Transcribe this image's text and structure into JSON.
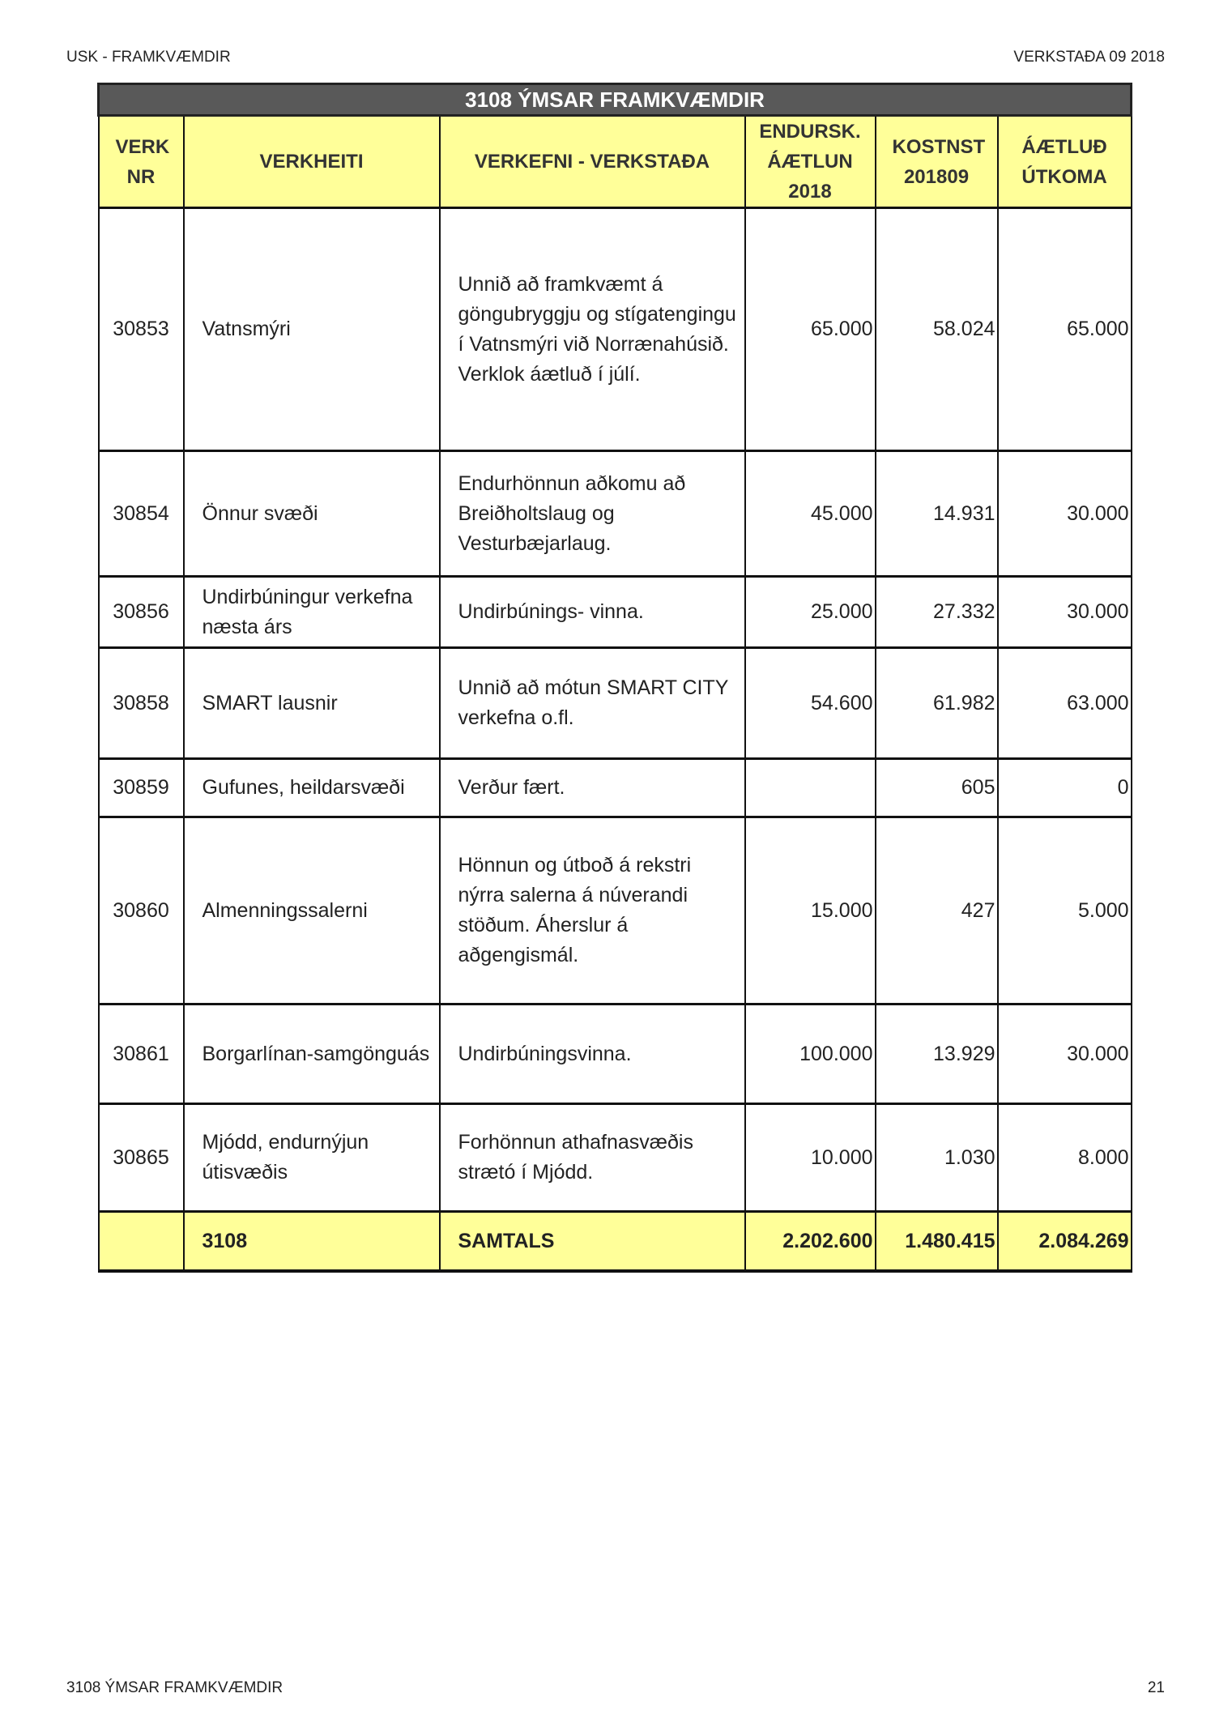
{
  "page_header": {
    "left": "USK - FRAMKVÆMDIR",
    "right": "VERKSTAÐA 09 2018"
  },
  "page_footer": {
    "left": "3108 ÝMSAR FRAMKVÆMDIR",
    "right": "21"
  },
  "table": {
    "title": "3108 ÝMSAR FRAMKVÆMDIR",
    "columns": [
      "VERK NR",
      "VERKHEITI",
      "VERKEFNI - VERKSTAÐA",
      "ENDURSK. ÁÆTLUN 2018",
      "KOSTNST 201809",
      "ÁÆTLUÐ ÚTKOMA"
    ],
    "rows": [
      {
        "nr": "30853",
        "name": "Vatnsmýri",
        "task": "Unnið að framkvæmt á göngubryggju og stígatengingu í Vatnsmýri við Norrænahúsið. Verklok áætluð  í júlí.",
        "plan": "65.000",
        "cost": "58.024",
        "outcome": "65.000"
      },
      {
        "nr": "30854",
        "name": "Önnur svæði",
        "task": "Endurhönnun aðkomu að Breiðholtslaug og Vesturbæjarlaug.",
        "plan": "45.000",
        "cost": "14.931",
        "outcome": "30.000"
      },
      {
        "nr": "30856",
        "name": "Undirbúningur verkefna næsta árs",
        "task": "Undirbúnings- vinna.",
        "plan": "25.000",
        "cost": "27.332",
        "outcome": "30.000"
      },
      {
        "nr": "30858",
        "name": "SMART lausnir",
        "task": "Unnið að mótun SMART CITY verkefna o.fl.",
        "plan": "54.600",
        "cost": "61.982",
        "outcome": "63.000"
      },
      {
        "nr": "30859",
        "name": "Gufunes, heildarsvæði",
        "task": "Verður fært.",
        "plan": "",
        "cost": "605",
        "outcome": "0"
      },
      {
        "nr": "30860",
        "name": "Almenningssalerni",
        "task": "Hönnun og útboð á rekstri nýrra salerna á núverandi stöðum. Áherslur á aðgengismál.",
        "plan": "15.000",
        "cost": "427",
        "outcome": "5.000"
      },
      {
        "nr": "30861",
        "name": "Borgarlínan-samgönguás",
        "task": "Undirbúningsvinna.",
        "plan": "100.000",
        "cost": "13.929",
        "outcome": "30.000"
      },
      {
        "nr": "30865",
        "name": "Mjódd, endurnýjun útisvæðis",
        "task": "Forhönnun athafnasvæðis strætó í Mjódd.",
        "plan": "10.000",
        "cost": "1.030",
        "outcome": "8.000"
      }
    ],
    "total": {
      "nr": "",
      "name": "3108",
      "task": "SAMTALS",
      "plan": "2.202.600",
      "cost": "1.480.415",
      "outcome": "2.084.269"
    }
  },
  "colors": {
    "title_bg": "#595959",
    "header_bg": "#ffff99"
  }
}
